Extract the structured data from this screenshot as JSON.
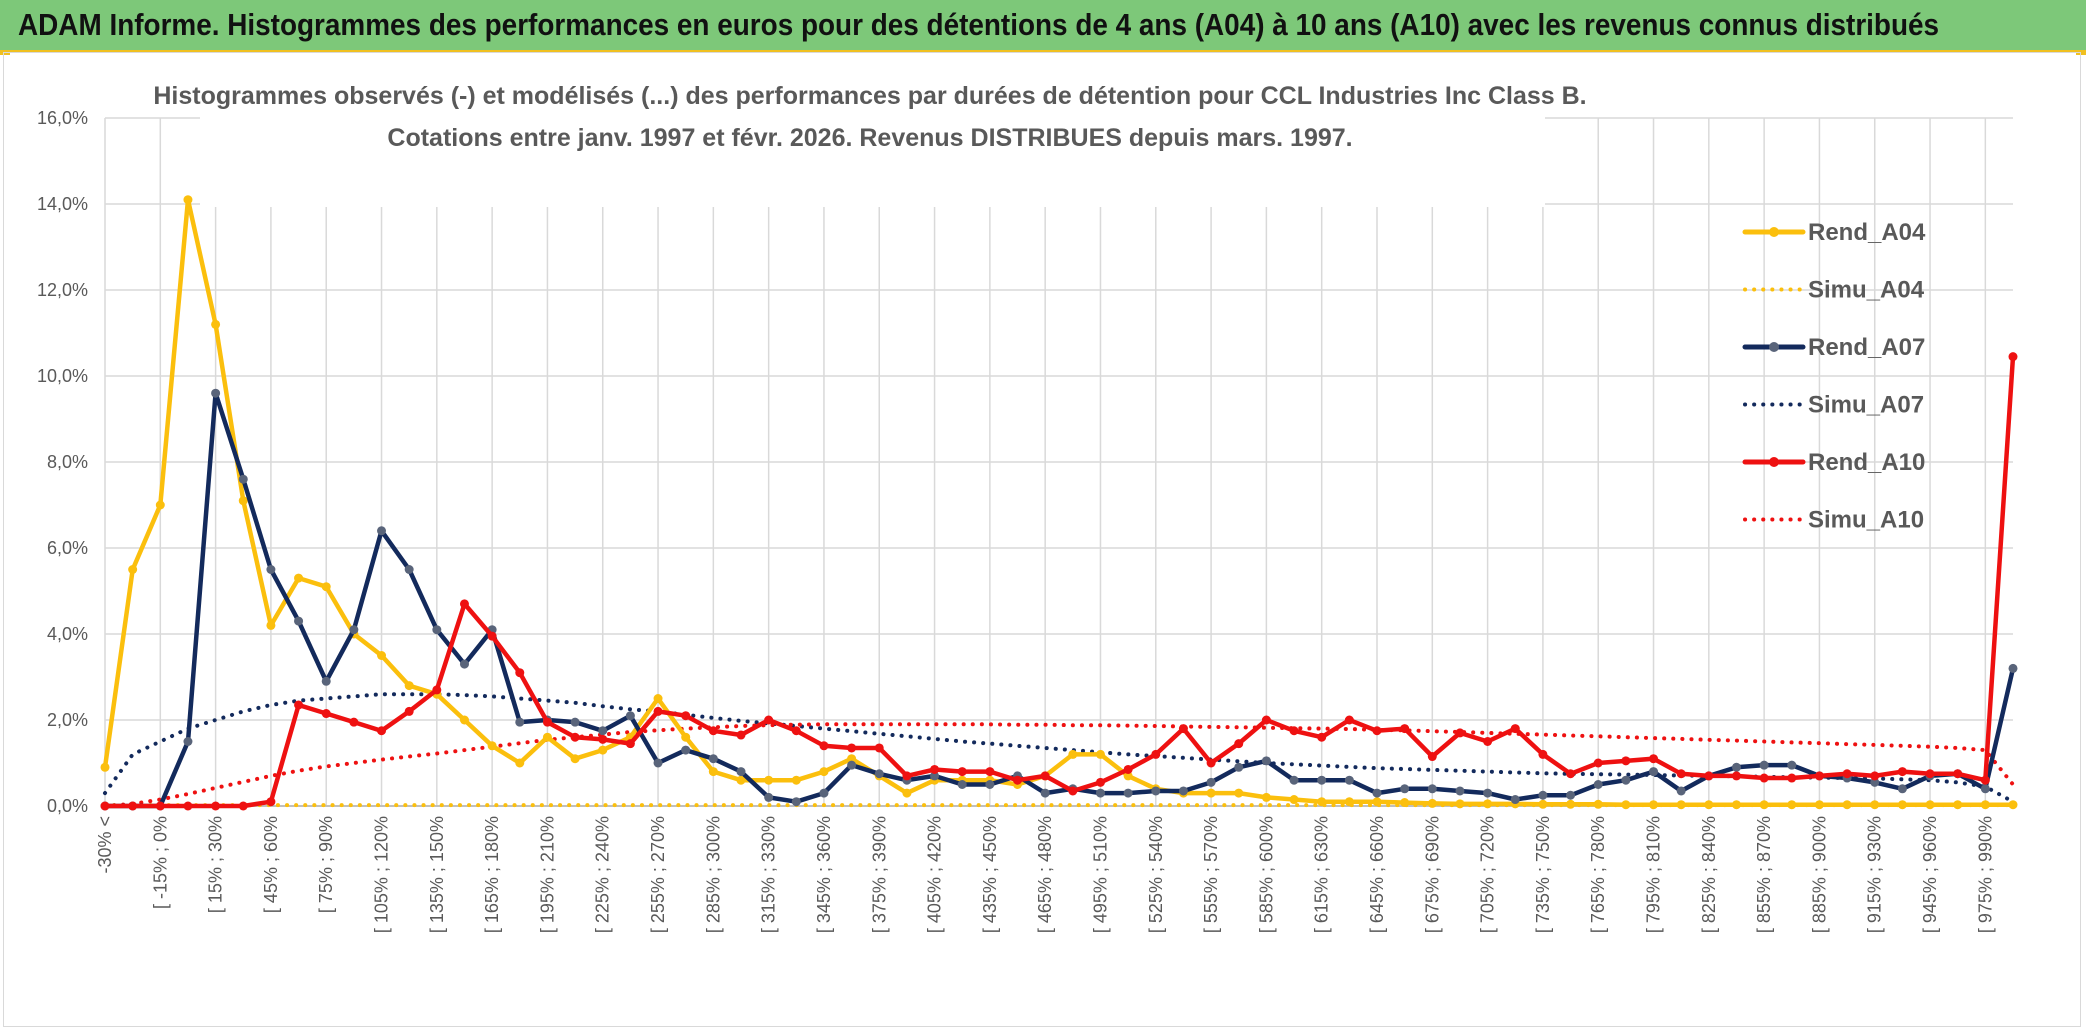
{
  "banner": {
    "title": "ADAM Informe. Histogrammes des performances en euros pour des détentions de 4 ans (A04) à 10 ans (A10) avec les revenus connus distribués"
  },
  "colors": {
    "banner_bg": "#7dc879",
    "accent": "#f0c020",
    "A04": "#fbbf0d",
    "A07": "#132a5c",
    "A07_marker": "#59647a",
    "A10": "#ee1111",
    "grid": "#d9d9d9",
    "text": "#595959"
  },
  "chart_data": {
    "type": "line",
    "title_line1": "Histogrammes observés (-) et modélisés (...) des performances par durées de détention pour CCL Industries Inc Class B.",
    "title_line2": "Cotations entre janv. 1997 et févr. 2026. Revenus DISTRIBUES depuis mars. 1997.",
    "ylim": [
      0,
      16
    ],
    "y_ticks": [
      "0,0%",
      "2,0%",
      "4,0%",
      "6,0%",
      "8,0%",
      "10,0%",
      "12,0%",
      "14,0%",
      "16,0%"
    ],
    "x_tick_labels": [
      "-30% <",
      "[ -15% ; 0%",
      "[ 15% ; 30%",
      "[ 45% ; 60%",
      "[ 75% ; 90%",
      "[ 105% ; 120%",
      "[ 135% ; 150%",
      "[ 165% ; 180%",
      "[ 195% ; 210%",
      "[ 225% ; 240%",
      "[ 255% ; 270%",
      "[ 285% ; 300%",
      "[ 315% ; 330%",
      "[ 345% ; 360%",
      "[ 375% ; 390%",
      "[ 405% ; 420%",
      "[ 435% ; 450%",
      "[ 465% ; 480%",
      "[ 495% ; 510%",
      "[ 525% ; 540%",
      "[ 555% ; 570%",
      "[ 585% ; 600%",
      "[ 615% ; 630%",
      "[ 645% ; 660%",
      "[ 675% ; 690%",
      "[ 705% ; 720%",
      "[ 735% ; 750%",
      "[ 765% ; 780%",
      "[ 795% ; 810%",
      "[ 825% ; 840%",
      "[ 855% ; 870%",
      "[ 885% ; 900%",
      "[ 915% ; 930%",
      "[ 945% ; 960%",
      "[ 975% ; 990%"
    ],
    "n_categories": 70,
    "grid": true,
    "legend_position": "right",
    "series": [
      {
        "name": "Rend_A04",
        "style": "solid",
        "color": "#fbbf0d",
        "values": [
          0.9,
          5.5,
          7.0,
          14.1,
          11.2,
          7.1,
          4.2,
          5.3,
          5.1,
          4.0,
          3.5,
          2.8,
          2.6,
          2.0,
          1.4,
          1.0,
          1.6,
          1.1,
          1.3,
          1.6,
          2.5,
          1.6,
          0.8,
          0.6,
          0.6,
          0.6,
          0.8,
          1.1,
          0.7,
          0.3,
          0.6,
          0.6,
          0.6,
          0.5,
          0.7,
          1.2,
          1.2,
          0.7,
          0.4,
          0.3,
          0.3,
          0.3,
          0.2,
          0.15,
          0.1,
          0.1,
          0.1,
          0.08,
          0.06,
          0.05,
          0.05,
          0.05,
          0.04,
          0.04,
          0.04,
          0.03,
          0.03,
          0.03,
          0.03,
          0.03,
          0.03,
          0.03,
          0.03,
          0.03,
          0.03,
          0.03,
          0.03,
          0.03,
          0.03,
          0.03
        ]
      },
      {
        "name": "Simu_A04",
        "style": "dotted",
        "color": "#fbbf0d",
        "values": [
          0.02,
          0.02,
          0.02,
          0.02,
          0.02,
          0.02,
          0.02,
          0.02,
          0.02,
          0.02,
          0.02,
          0.02,
          0.02,
          0.02,
          0.02,
          0.02,
          0.02,
          0.02,
          0.02,
          0.02,
          0.02,
          0.02,
          0.02,
          0.02,
          0.02,
          0.02,
          0.02,
          0.02,
          0.02,
          0.02,
          0.02,
          0.02,
          0.02,
          0.02,
          0.02,
          0.02,
          0.02,
          0.02,
          0.02,
          0.02,
          0.02,
          0.02,
          0.02,
          0.02,
          0.02,
          0.02,
          0.02,
          0.02,
          0.02,
          0.02,
          0.02,
          0.02,
          0.02,
          0.02,
          0.02,
          0.02,
          0.02,
          0.02,
          0.02,
          0.02,
          0.02,
          0.02,
          0.02,
          0.02,
          0.02,
          0.02,
          0.02,
          0.02,
          0.02,
          0.02
        ]
      },
      {
        "name": "Rend_A07",
        "style": "solid",
        "color": "#132a5c",
        "values": [
          0.0,
          0.0,
          0.0,
          1.5,
          9.6,
          7.6,
          5.5,
          4.3,
          2.9,
          4.1,
          6.4,
          5.5,
          4.1,
          3.3,
          4.1,
          1.95,
          2.0,
          1.95,
          1.75,
          2.1,
          1.0,
          1.3,
          1.1,
          0.8,
          0.2,
          0.1,
          0.3,
          0.95,
          0.75,
          0.6,
          0.7,
          0.5,
          0.5,
          0.7,
          0.3,
          0.4,
          0.3,
          0.3,
          0.35,
          0.35,
          0.55,
          0.9,
          1.05,
          0.6,
          0.6,
          0.6,
          0.3,
          0.4,
          0.4,
          0.35,
          0.3,
          0.15,
          0.25,
          0.25,
          0.5,
          0.6,
          0.8,
          0.35,
          0.7,
          0.9,
          0.95,
          0.95,
          0.7,
          0.65,
          0.55,
          0.4,
          0.7,
          0.75,
          0.4,
          3.2
        ]
      },
      {
        "name": "Simu_A07",
        "style": "dotted",
        "color": "#132a5c",
        "values": [
          0.3,
          1.2,
          1.5,
          1.8,
          2.0,
          2.2,
          2.35,
          2.45,
          2.5,
          2.55,
          2.6,
          2.6,
          2.6,
          2.58,
          2.55,
          2.5,
          2.45,
          2.4,
          2.32,
          2.25,
          2.2,
          2.12,
          2.05,
          1.98,
          1.92,
          1.86,
          1.8,
          1.74,
          1.68,
          1.62,
          1.56,
          1.5,
          1.45,
          1.4,
          1.35,
          1.3,
          1.25,
          1.2,
          1.16,
          1.12,
          1.08,
          1.04,
          1.0,
          0.97,
          0.94,
          0.91,
          0.88,
          0.86,
          0.84,
          0.82,
          0.8,
          0.78,
          0.76,
          0.75,
          0.74,
          0.73,
          0.72,
          0.71,
          0.7,
          0.69,
          0.68,
          0.67,
          0.66,
          0.65,
          0.64,
          0.62,
          0.6,
          0.55,
          0.45,
          0.1
        ]
      },
      {
        "name": "Rend_A10",
        "style": "solid",
        "color": "#ee1111",
        "values": [
          0.0,
          0.0,
          0.0,
          0.0,
          0.0,
          0.0,
          0.1,
          2.35,
          2.15,
          1.95,
          1.75,
          2.2,
          2.7,
          4.7,
          3.95,
          3.1,
          1.95,
          1.6,
          1.55,
          1.45,
          2.2,
          2.1,
          1.75,
          1.65,
          2.0,
          1.75,
          1.4,
          1.35,
          1.35,
          0.7,
          0.85,
          0.8,
          0.8,
          0.6,
          0.7,
          0.35,
          0.55,
          0.85,
          1.2,
          1.8,
          1.0,
          1.45,
          2.0,
          1.75,
          1.6,
          2.0,
          1.75,
          1.8,
          1.15,
          1.7,
          1.5,
          1.8,
          1.2,
          0.75,
          1.0,
          1.05,
          1.1,
          0.75,
          0.7,
          0.7,
          0.65,
          0.65,
          0.7,
          0.75,
          0.7,
          0.8,
          0.75,
          0.75,
          0.6,
          10.45
        ]
      },
      {
        "name": "Simu_A10",
        "style": "dotted",
        "color": "#ee1111",
        "values": [
          0.0,
          0.05,
          0.15,
          0.28,
          0.42,
          0.56,
          0.7,
          0.82,
          0.92,
          1.0,
          1.08,
          1.15,
          1.22,
          1.3,
          1.38,
          1.46,
          1.54,
          1.6,
          1.66,
          1.72,
          1.76,
          1.8,
          1.83,
          1.86,
          1.88,
          1.89,
          1.9,
          1.9,
          1.9,
          1.9,
          1.9,
          1.9,
          1.9,
          1.89,
          1.89,
          1.88,
          1.88,
          1.87,
          1.86,
          1.85,
          1.84,
          1.83,
          1.82,
          1.81,
          1.8,
          1.79,
          1.77,
          1.76,
          1.74,
          1.72,
          1.7,
          1.68,
          1.66,
          1.64,
          1.62,
          1.6,
          1.58,
          1.56,
          1.54,
          1.52,
          1.5,
          1.48,
          1.46,
          1.44,
          1.42,
          1.4,
          1.38,
          1.35,
          1.3,
          0.5
        ]
      }
    ]
  }
}
